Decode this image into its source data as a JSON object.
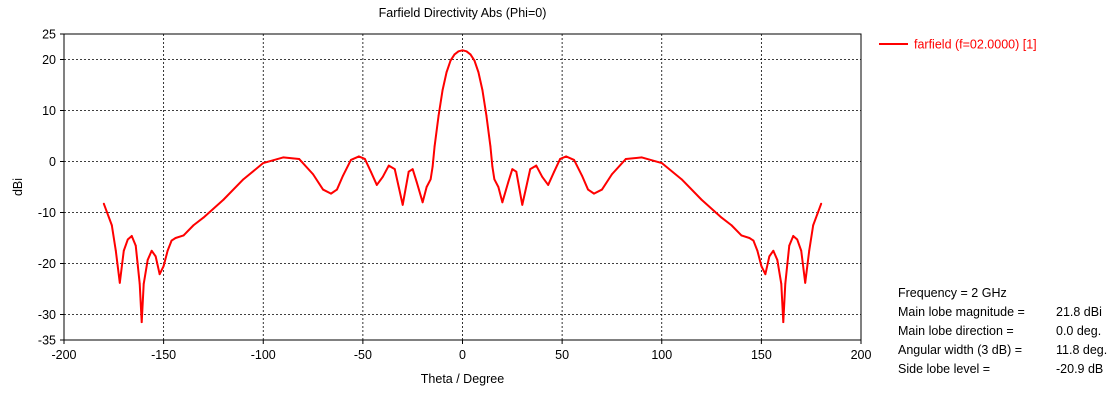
{
  "chart_data": {
    "type": "line",
    "title": "Farfield Directivity Abs (Phi=0)",
    "xlabel": "Theta / Degree",
    "ylabel": "dBi",
    "xlim": [
      -200,
      200
    ],
    "ylim": [
      -35,
      25
    ],
    "x_ticks": [
      -200,
      -150,
      -100,
      -50,
      0,
      50,
      100,
      150,
      200
    ],
    "y_ticks": [
      -35,
      -30,
      -20,
      -10,
      0,
      10,
      20,
      25
    ],
    "x_tick_labels": [
      "-200",
      "-150",
      "-100",
      "-50",
      "0",
      "50",
      "100",
      "150",
      "200"
    ],
    "y_tick_labels": [
      "-35",
      "-30",
      "-20",
      "-10",
      "0",
      "10",
      "20",
      "25"
    ],
    "grid": true,
    "legend_position": "top-right",
    "series": [
      {
        "name": "farfield (f=02.0000) [1]",
        "color": "#ff0000",
        "x": [
          -180,
          -176,
          -174,
          -172,
          -170,
          -168,
          -166,
          -164,
          -162,
          -161,
          -160,
          -158,
          -156,
          -154,
          -152,
          -150,
          -148,
          -146,
          -144,
          -140,
          -135,
          -130,
          -120,
          -110,
          -100,
          -90,
          -82,
          -75,
          -70,
          -66,
          -63,
          -60,
          -56,
          -52,
          -49,
          -46,
          -43,
          -40,
          -37,
          -34,
          -32,
          -30,
          -27,
          -25,
          -23,
          -20,
          -18,
          -16,
          -15,
          -14,
          -12,
          -10,
          -8,
          -6,
          -4,
          -2,
          0,
          2,
          4,
          6,
          8,
          10,
          12,
          14,
          15,
          16,
          18,
          20,
          23,
          25,
          27,
          30,
          32,
          34,
          37,
          40,
          43,
          46,
          49,
          52,
          56,
          60,
          63,
          66,
          70,
          75,
          82,
          90,
          100,
          110,
          120,
          130,
          135,
          140,
          144,
          146,
          148,
          150,
          152,
          154,
          156,
          158,
          160,
          161,
          162,
          164,
          166,
          168,
          170,
          172,
          174,
          176,
          180
        ],
        "y": [
          -8.3,
          -12.5,
          -17.5,
          -23.8,
          -17.5,
          -15.3,
          -14.6,
          -16.5,
          -24.0,
          -31.5,
          -24.0,
          -19.3,
          -17.5,
          -18.6,
          -22.1,
          -20.5,
          -17.5,
          -15.5,
          -15.0,
          -14.5,
          -12.5,
          -11.0,
          -7.5,
          -3.5,
          -0.3,
          0.8,
          0.5,
          -2.5,
          -5.5,
          -6.3,
          -5.5,
          -2.8,
          0.3,
          1.0,
          0.5,
          -2.0,
          -4.6,
          -3.0,
          -0.8,
          -1.5,
          -5.0,
          -8.5,
          -2.0,
          -1.5,
          -4.0,
          -8.0,
          -5.0,
          -3.5,
          -1.0,
          3.0,
          9.0,
          14.0,
          17.5,
          19.8,
          21.0,
          21.6,
          21.8,
          21.6,
          21.0,
          19.8,
          17.5,
          14.0,
          9.0,
          3.0,
          -1.0,
          -3.5,
          -5.0,
          -8.0,
          -4.0,
          -1.5,
          -2.0,
          -8.5,
          -5.0,
          -1.5,
          -0.8,
          -3.0,
          -4.6,
          -2.0,
          0.5,
          1.0,
          0.3,
          -2.8,
          -5.5,
          -6.3,
          -5.5,
          -2.5,
          0.5,
          0.8,
          -0.3,
          -3.5,
          -7.5,
          -11.0,
          -12.5,
          -14.5,
          -15.0,
          -15.5,
          -17.5,
          -20.5,
          -22.1,
          -18.6,
          -17.5,
          -19.3,
          -24.0,
          -31.5,
          -24.0,
          -16.5,
          -14.6,
          -15.3,
          -17.5,
          -23.8,
          -17.5,
          -12.5,
          -8.3
        ]
      }
    ]
  },
  "info_panel": [
    {
      "label": "Frequency = 2 GHz",
      "value": ""
    },
    {
      "label": "Main lobe magnitude =",
      "value": "21.8 dBi"
    },
    {
      "label": "Main lobe direction =",
      "value": "0.0 deg."
    },
    {
      "label": "Angular width (3 dB) =",
      "value": "11.8 deg."
    },
    {
      "label": "Side lobe level =",
      "value": "-20.9 dB"
    }
  ]
}
